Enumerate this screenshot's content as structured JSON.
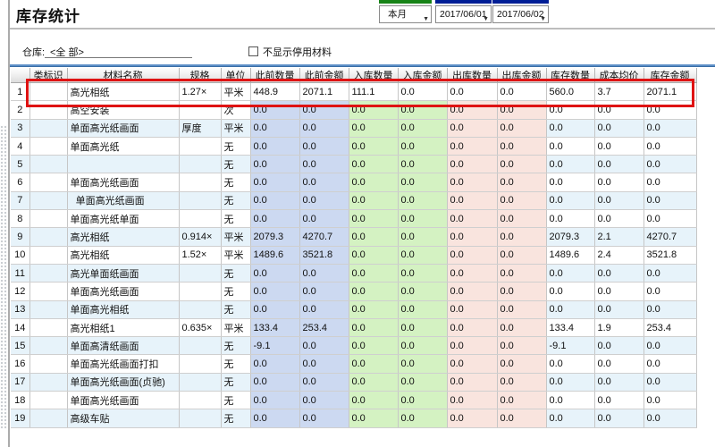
{
  "title": "库存统计",
  "toolbar": {
    "period_select": "本月",
    "date_from": "2017/06/01",
    "date_to": "2017/06/02",
    "dropdown_arrow": "▼"
  },
  "filters": {
    "warehouse_label": "仓库:",
    "warehouse_value": "<全 部>",
    "checkbox_label": "不显示停用材料",
    "checkbox_checked": false
  },
  "table": {
    "columns": [
      "类标识",
      "材料名称",
      "规格",
      "单位",
      "此前数量",
      "此前金额",
      "入库数量",
      "入库金额",
      "出库数量",
      "出库金额",
      "库存数量",
      "成本均价",
      "库存金额"
    ],
    "rows": [
      {
        "num": "1",
        "cells": [
          "",
          "高光相纸",
          "1.27×",
          "平米",
          "448.9",
          "2071.1",
          "111.1",
          "0.0",
          "0.0",
          "0.0",
          "560.0",
          "3.7",
          "2071.1"
        ]
      },
      {
        "num": "2",
        "cells": [
          "",
          "高空安装",
          "",
          "次",
          "0.0",
          "0.0",
          "0.0",
          "0.0",
          "0.0",
          "0.0",
          "0.0",
          "0.0",
          "0.0"
        ]
      },
      {
        "num": "3",
        "cells": [
          "",
          "单面高光纸画面",
          "厚度",
          "平米",
          "0.0",
          "0.0",
          "0.0",
          "0.0",
          "0.0",
          "0.0",
          "0.0",
          "0.0",
          "0.0"
        ]
      },
      {
        "num": "4",
        "cells": [
          "",
          "单面高光纸",
          "",
          "无",
          "0.0",
          "0.0",
          "0.0",
          "0.0",
          "0.0",
          "0.0",
          "0.0",
          "0.0",
          "0.0"
        ]
      },
      {
        "num": "5",
        "cells": [
          "",
          "",
          "",
          "无",
          "0.0",
          "0.0",
          "0.0",
          "0.0",
          "0.0",
          "0.0",
          "0.0",
          "0.0",
          "0.0"
        ]
      },
      {
        "num": "6",
        "cells": [
          "",
          "单面高光纸画面",
          "",
          "无",
          "0.0",
          "0.0",
          "0.0",
          "0.0",
          "0.0",
          "0.0",
          "0.0",
          "0.0",
          "0.0"
        ]
      },
      {
        "num": "7",
        "cells": [
          "",
          "  单面高光纸画面",
          "",
          "无",
          "0.0",
          "0.0",
          "0.0",
          "0.0",
          "0.0",
          "0.0",
          "0.0",
          "0.0",
          "0.0"
        ]
      },
      {
        "num": "8",
        "cells": [
          "",
          "单面高光纸单面",
          "",
          "无",
          "0.0",
          "0.0",
          "0.0",
          "0.0",
          "0.0",
          "0.0",
          "0.0",
          "0.0",
          "0.0"
        ]
      },
      {
        "num": "9",
        "cells": [
          "",
          "高光相纸",
          "0.914×",
          "平米",
          "2079.3",
          "4270.7",
          "0.0",
          "0.0",
          "0.0",
          "0.0",
          "2079.3",
          "2.1",
          "4270.7"
        ]
      },
      {
        "num": "10",
        "cells": [
          "",
          "高光相纸",
          "1.52×",
          "平米",
          "1489.6",
          "3521.8",
          "0.0",
          "0.0",
          "0.0",
          "0.0",
          "1489.6",
          "2.4",
          "3521.8"
        ]
      },
      {
        "num": "11",
        "cells": [
          "",
          "高光单面纸画面",
          "",
          "无",
          "0.0",
          "0.0",
          "0.0",
          "0.0",
          "0.0",
          "0.0",
          "0.0",
          "0.0",
          "0.0"
        ]
      },
      {
        "num": "12",
        "cells": [
          "",
          "单面高光纸画面",
          "",
          "无",
          "0.0",
          "0.0",
          "0.0",
          "0.0",
          "0.0",
          "0.0",
          "0.0",
          "0.0",
          "0.0"
        ]
      },
      {
        "num": "13",
        "cells": [
          "",
          "单面高光相纸",
          "",
          "无",
          "0.0",
          "0.0",
          "0.0",
          "0.0",
          "0.0",
          "0.0",
          "0.0",
          "0.0",
          "0.0"
        ]
      },
      {
        "num": "14",
        "cells": [
          "",
          "高光相纸1",
          "0.635×",
          "平米",
          "133.4",
          "253.4",
          "0.0",
          "0.0",
          "0.0",
          "0.0",
          "133.4",
          "1.9",
          "253.4"
        ]
      },
      {
        "num": "15",
        "cells": [
          "",
          "单面高清纸画面",
          "",
          "无",
          "-9.1",
          "0.0",
          "0.0",
          "0.0",
          "0.0",
          "0.0",
          "-9.1",
          "0.0",
          "0.0"
        ]
      },
      {
        "num": "16",
        "cells": [
          "",
          "单面高光纸画面打扣",
          "",
          "无",
          "0.0",
          "0.0",
          "0.0",
          "0.0",
          "0.0",
          "0.0",
          "0.0",
          "0.0",
          "0.0"
        ]
      },
      {
        "num": "17",
        "cells": [
          "",
          "单面高光纸画面(贞驰)",
          "",
          "无",
          "0.0",
          "0.0",
          "0.0",
          "0.0",
          "0.0",
          "0.0",
          "0.0",
          "0.0",
          "0.0"
        ]
      },
      {
        "num": "18",
        "cells": [
          "",
          "单面高光纸画面",
          "",
          "无",
          "0.0",
          "0.0",
          "0.0",
          "0.0",
          "0.0",
          "0.0",
          "0.0",
          "0.0",
          "0.0"
        ]
      },
      {
        "num": "19",
        "cells": [
          "",
          "高级车贴",
          "",
          "无",
          "0.0",
          "0.0",
          "0.0",
          "0.0",
          "0.0",
          "0.0",
          "0.0",
          "0.0",
          "0.0"
        ]
      }
    ],
    "selected_row": 1
  },
  "colors": {
    "highlight_red": "#df1313",
    "col_prev": "#ccd9f1",
    "col_in": "#d4f2c2",
    "col_out": "#f9e4de",
    "alt_row": "#e7f3fa",
    "topline": "#5d8fc7",
    "label_green": "#168316",
    "label_navy": "#001e96"
  }
}
